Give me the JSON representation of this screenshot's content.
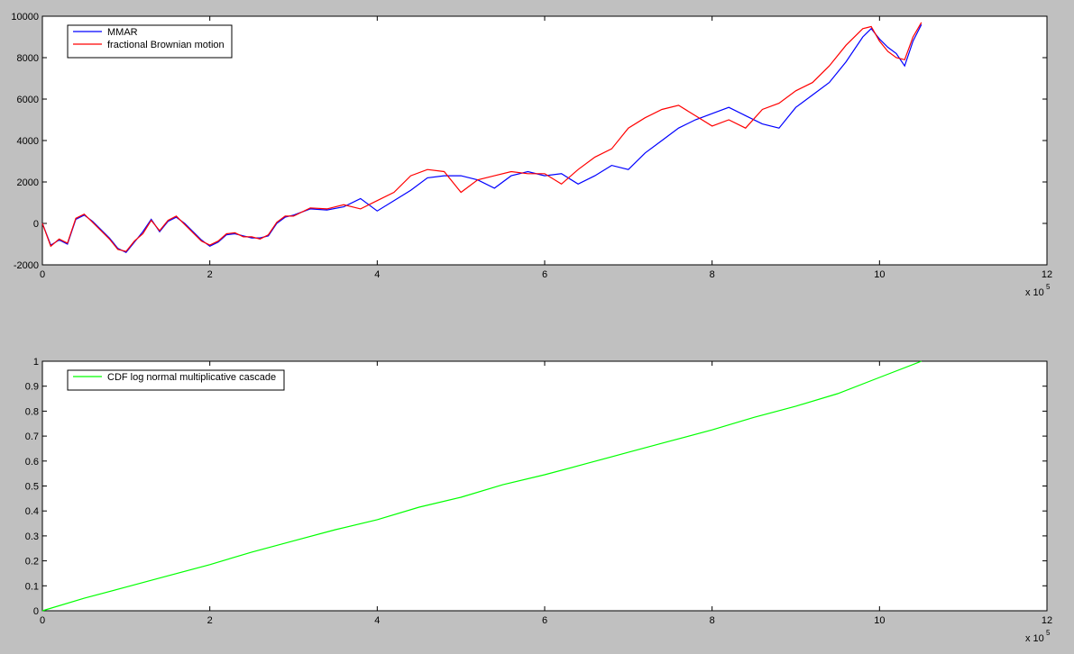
{
  "chart_data": [
    {
      "type": "line",
      "title": "",
      "xlabel": "",
      "ylabel": "",
      "x_multiplier_label": "x 10",
      "x_multiplier_exponent": "5",
      "xlim": [
        0,
        12
      ],
      "ylim": [
        -2000,
        10000
      ],
      "xticks": [
        0,
        2,
        4,
        6,
        8,
        10,
        12
      ],
      "yticks": [
        -2000,
        0,
        2000,
        4000,
        6000,
        8000,
        10000
      ],
      "grid": false,
      "legend_position": "top-left",
      "series": [
        {
          "name": "MMAR",
          "color": "#0000ff",
          "x": [
            0,
            0.1,
            0.2,
            0.3,
            0.4,
            0.5,
            0.6,
            0.7,
            0.8,
            0.9,
            1.0,
            1.1,
            1.2,
            1.3,
            1.4,
            1.5,
            1.6,
            1.7,
            1.8,
            1.9,
            2.0,
            2.1,
            2.2,
            2.3,
            2.4,
            2.5,
            2.6,
            2.7,
            2.8,
            2.9,
            3.0,
            3.2,
            3.4,
            3.6,
            3.8,
            4.0,
            4.2,
            4.4,
            4.6,
            4.8,
            5.0,
            5.2,
            5.4,
            5.6,
            5.8,
            6.0,
            6.2,
            6.4,
            6.6,
            6.8,
            7.0,
            7.2,
            7.4,
            7.6,
            7.8,
            8.0,
            8.2,
            8.4,
            8.6,
            8.8,
            9.0,
            9.2,
            9.4,
            9.6,
            9.8,
            9.9,
            10.0,
            10.1,
            10.2,
            10.3,
            10.4,
            10.5
          ],
          "values": [
            0,
            -1050,
            -800,
            -1000,
            200,
            400,
            100,
            -300,
            -700,
            -1200,
            -1400,
            -900,
            -400,
            200,
            -400,
            100,
            300,
            0,
            -400,
            -800,
            -1100,
            -900,
            -550,
            -500,
            -600,
            -700,
            -700,
            -600,
            0,
            300,
            400,
            700,
            650,
            800,
            1200,
            600,
            1100,
            1600,
            2200,
            2300,
            2300,
            2100,
            1700,
            2300,
            2500,
            2300,
            2400,
            1900,
            2300,
            2800,
            2600,
            3400,
            4000,
            4600,
            5000,
            5300,
            5600,
            5200,
            4800,
            4600,
            5600,
            6200,
            6800,
            7800,
            9000,
            9400,
            8900,
            8500,
            8200,
            7600,
            8800,
            9600
          ]
        },
        {
          "name": "fractional Brownian motion",
          "color": "#ff0000",
          "x": [
            0,
            0.1,
            0.2,
            0.3,
            0.4,
            0.5,
            0.6,
            0.7,
            0.8,
            0.9,
            1.0,
            1.1,
            1.2,
            1.3,
            1.4,
            1.5,
            1.6,
            1.7,
            1.8,
            1.9,
            2.0,
            2.1,
            2.2,
            2.3,
            2.4,
            2.5,
            2.6,
            2.7,
            2.8,
            2.9,
            3.0,
            3.2,
            3.4,
            3.6,
            3.8,
            4.0,
            4.2,
            4.4,
            4.6,
            4.8,
            5.0,
            5.2,
            5.4,
            5.6,
            5.8,
            6.0,
            6.2,
            6.4,
            6.6,
            6.8,
            7.0,
            7.2,
            7.4,
            7.6,
            7.8,
            8.0,
            8.2,
            8.4,
            8.6,
            8.8,
            9.0,
            9.2,
            9.4,
            9.6,
            9.8,
            9.9,
            10.0,
            10.1,
            10.2,
            10.3,
            10.4,
            10.5
          ],
          "values": [
            0,
            -1100,
            -750,
            -950,
            250,
            450,
            50,
            -350,
            -750,
            -1250,
            -1350,
            -850,
            -500,
            150,
            -350,
            150,
            350,
            -50,
            -450,
            -850,
            -1050,
            -850,
            -500,
            -450,
            -650,
            -650,
            -750,
            -550,
            50,
            350,
            350,
            750,
            700,
            900,
            700,
            1100,
            1500,
            2300,
            2600,
            2500,
            1500,
            2100,
            2300,
            2500,
            2400,
            2400,
            1900,
            2600,
            3200,
            3600,
            4600,
            5100,
            5500,
            5700,
            5200,
            4700,
            5000,
            4600,
            5500,
            5800,
            6400,
            6800,
            7600,
            8600,
            9400,
            9500,
            8800,
            8300,
            8000,
            7900,
            9000,
            9700
          ]
        }
      ]
    },
    {
      "type": "line",
      "title": "",
      "xlabel": "",
      "ylabel": "",
      "x_multiplier_label": "x 10",
      "x_multiplier_exponent": "5",
      "xlim": [
        0,
        12
      ],
      "ylim": [
        0,
        1
      ],
      "xticks": [
        0,
        2,
        4,
        6,
        8,
        10,
        12
      ],
      "yticks": [
        0,
        0.1,
        0.2,
        0.3,
        0.4,
        0.5,
        0.6,
        0.7,
        0.8,
        0.9,
        1
      ],
      "grid": false,
      "legend_position": "top-left",
      "series": [
        {
          "name": "CDF log normal multiplicative cascade",
          "color": "#00ff00",
          "x": [
            0,
            0.5,
            1.0,
            1.5,
            2.0,
            2.5,
            3.0,
            3.5,
            4.0,
            4.5,
            5.0,
            5.5,
            6.0,
            6.5,
            7.0,
            7.5,
            8.0,
            8.5,
            9.0,
            9.5,
            10.0,
            10.5
          ],
          "values": [
            0,
            0.05,
            0.095,
            0.14,
            0.185,
            0.235,
            0.28,
            0.325,
            0.365,
            0.415,
            0.455,
            0.505,
            0.545,
            0.59,
            0.635,
            0.68,
            0.725,
            0.775,
            0.82,
            0.87,
            0.935,
            1.0
          ]
        }
      ]
    }
  ]
}
